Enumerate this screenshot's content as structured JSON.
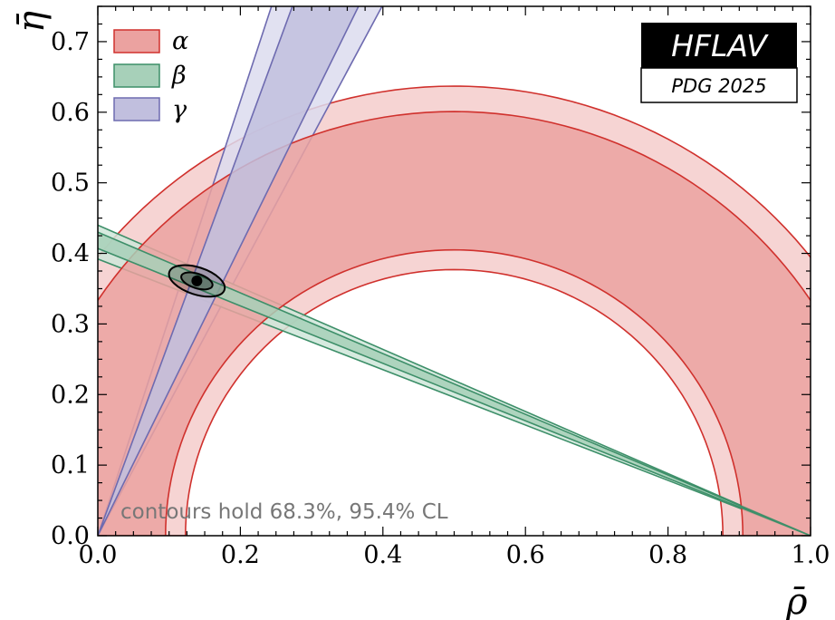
{
  "chart_data": {
    "type": "area",
    "xlabel": "ρ̄",
    "ylabel": "η̄",
    "xlim": [
      0.0,
      1.0
    ],
    "ylim": [
      0.0,
      0.75
    ],
    "x_ticks": [
      "0.0",
      "0.2",
      "0.4",
      "0.6",
      "0.8",
      "1.0"
    ],
    "y_ticks": [
      "0.0",
      "0.1",
      "0.2",
      "0.3",
      "0.4",
      "0.5",
      "0.6",
      "0.7"
    ],
    "grid": false,
    "legend_position": "top-left",
    "badge": {
      "title": "HFLAV",
      "subtitle": "PDG 2025"
    },
    "note": "contours hold 68.3%, 95.4% CL",
    "best_fit": {
      "rho_bar": 0.139,
      "eta_bar": 0.361
    },
    "series": [
      {
        "name": "α",
        "color": "#d0312d",
        "fill_outer": "#f4cccb",
        "fill_inner": "#eba2a0",
        "outer_radii": [
          0.377,
          0.637
        ],
        "inner_radii": [
          0.405,
          0.601
        ]
      },
      {
        "name": "β",
        "color": "#3d8f69",
        "fill_outer": "#cfe6d9",
        "fill_inner": "#a7d0b9",
        "outer_intercepts": [
          0.392,
          0.44
        ],
        "inner_intercepts": [
          0.407,
          0.43
        ]
      },
      {
        "name": "γ",
        "color": "#6e6bb0",
        "fill_outer": "#dcdcee",
        "fill_inner": "#c1bfde",
        "outer_angles_deg": [
          62.0,
          72.0
        ],
        "inner_angles_deg": [
          64.0,
          70.0
        ]
      }
    ]
  }
}
